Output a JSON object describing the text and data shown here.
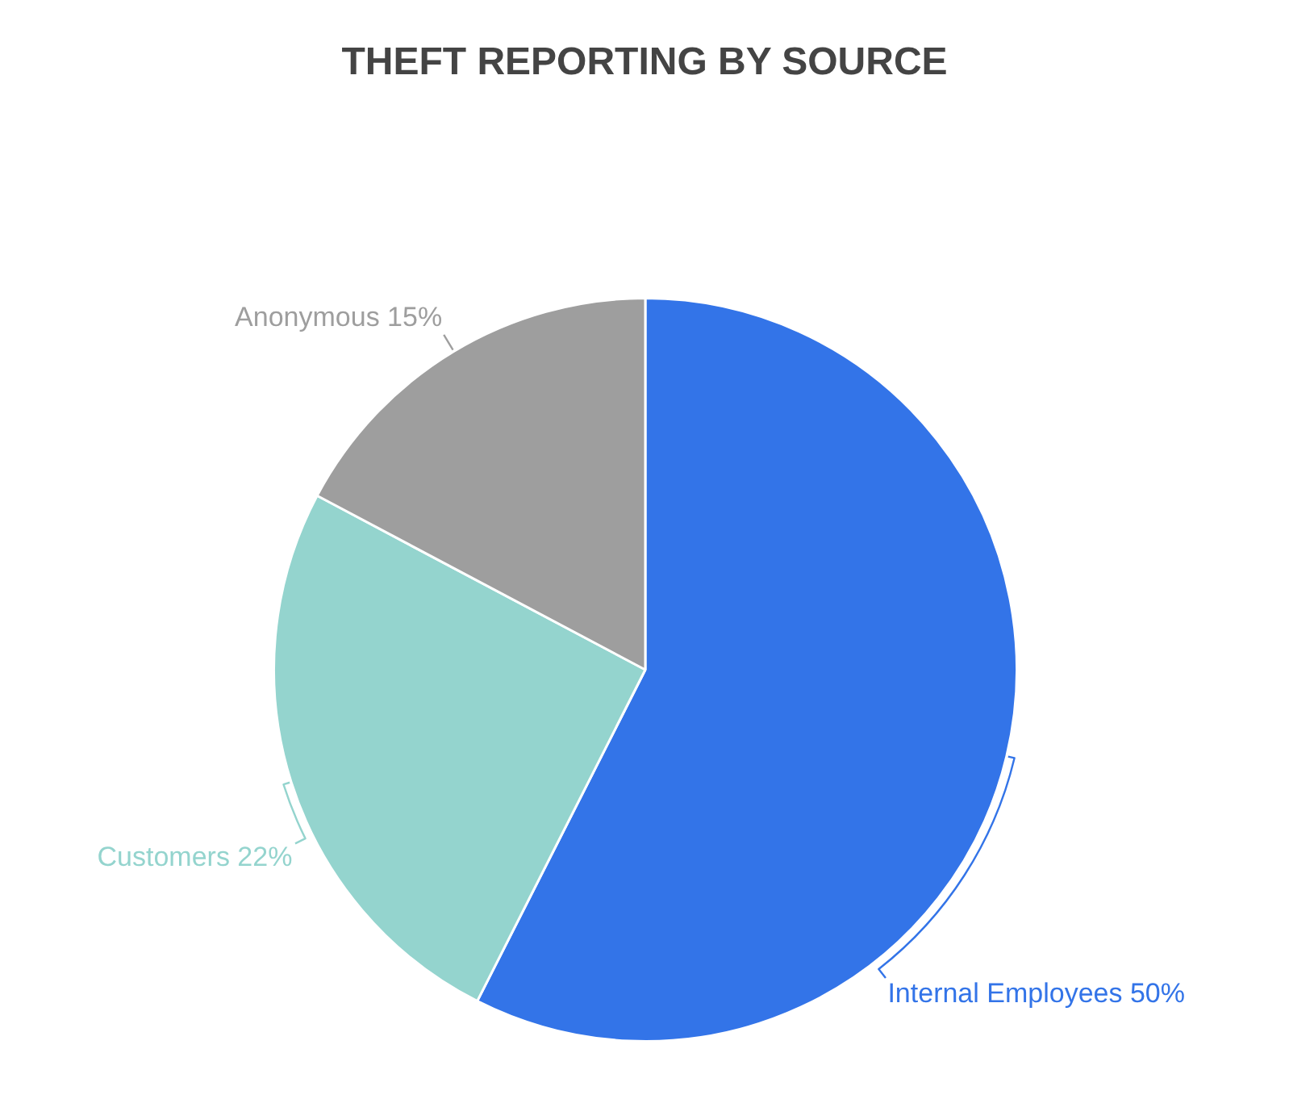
{
  "chart_data": {
    "type": "pie",
    "title": "THEFT REPORTING BY SOURCE",
    "categories": [
      "Internal Employees",
      "Customers",
      "Anonymous"
    ],
    "values": [
      50,
      22,
      15
    ],
    "value_labels": [
      "50%",
      "22%",
      "15%"
    ],
    "colors": [
      "#3374e8",
      "#94d4ce",
      "#9e9e9e"
    ]
  }
}
